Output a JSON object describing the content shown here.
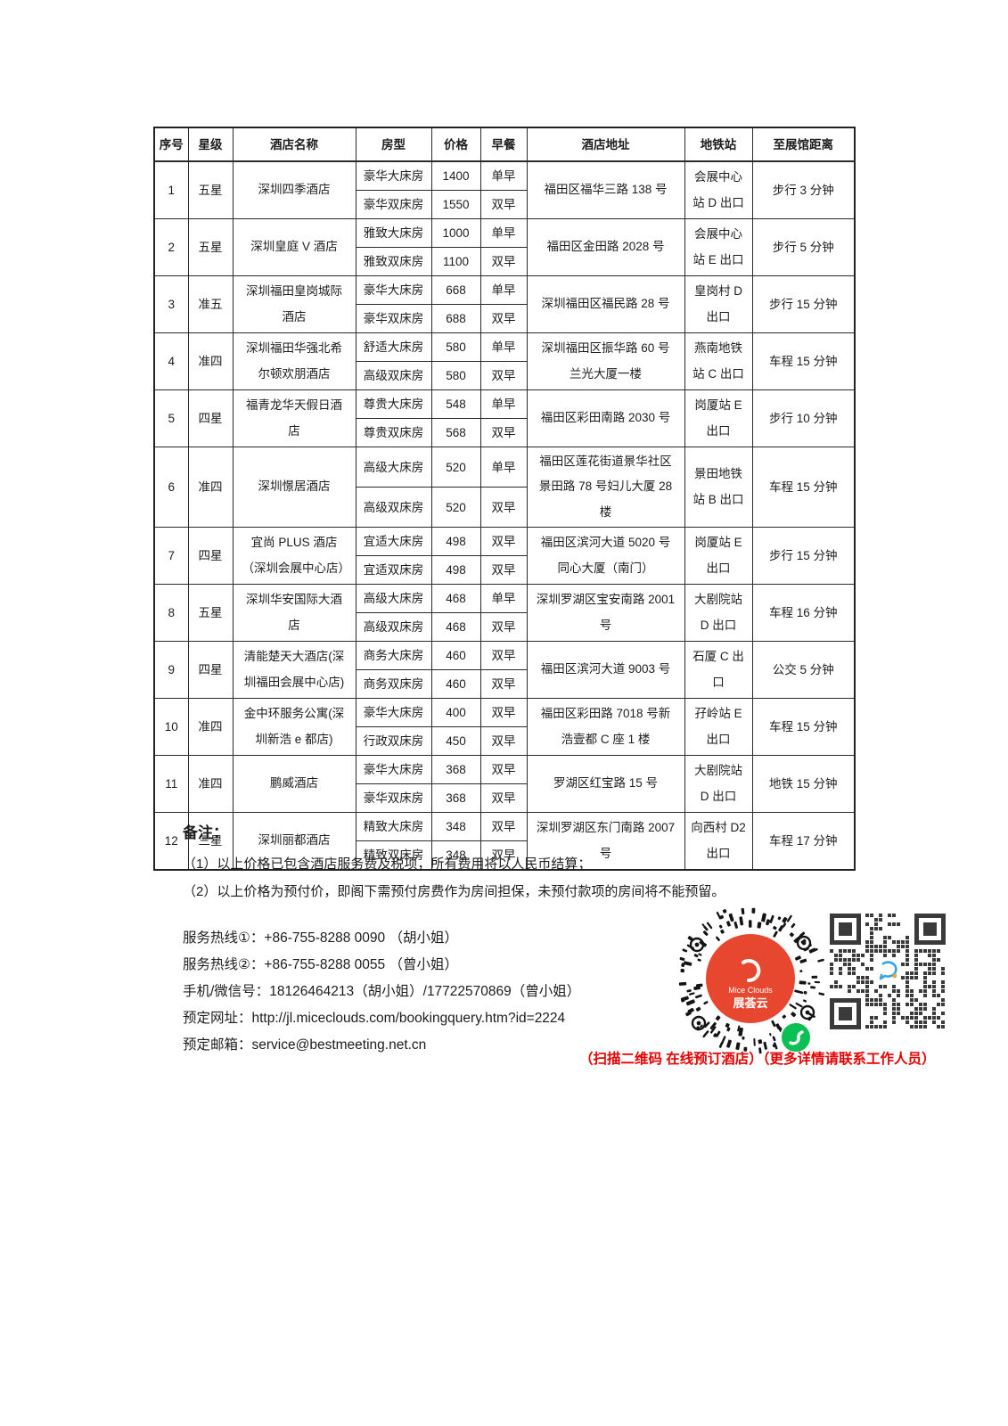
{
  "table": {
    "headers": [
      "序号",
      "星级",
      "酒店名称",
      "房型",
      "价格",
      "早餐",
      "酒店地址",
      "地铁站",
      "至展馆距离"
    ],
    "rows": [
      {
        "no": "1",
        "star": "五星",
        "hotel": "深圳四季酒店",
        "room1": "豪华大床房",
        "price1": "1400",
        "bf1": "单早",
        "room2": "豪华双床房",
        "price2": "1550",
        "bf2": "双早",
        "address": "福田区福华三路 138 号",
        "station": "会展中心站 D 出口",
        "distance": "步行 3 分钟"
      },
      {
        "no": "2",
        "star": "五星",
        "hotel": "深圳皇庭 V 酒店",
        "room1": "雅致大床房",
        "price1": "1000",
        "bf1": "单早",
        "room2": "雅致双床房",
        "price2": "1100",
        "bf2": "双早",
        "address": "福田区金田路 2028 号",
        "station": "会展中心站 E 出口",
        "distance": "步行 5 分钟"
      },
      {
        "no": "3",
        "star": "准五",
        "hotel": "深圳福田皇岗城际酒店",
        "room1": "豪华大床房",
        "price1": "668",
        "bf1": "单早",
        "room2": "豪华双床房",
        "price2": "688",
        "bf2": "双早",
        "address": "深圳福田区福民路 28 号",
        "station": "皇岗村 D 出口",
        "distance": "步行 15 分钟"
      },
      {
        "no": "4",
        "star": "准四",
        "hotel": "深圳福田华强北希尔顿欢朋酒店",
        "room1": "舒适大床房",
        "price1": "580",
        "bf1": "单早",
        "room2": "高级双床房",
        "price2": "580",
        "bf2": "双早",
        "address": "深圳福田区振华路 60 号兰光大厦一楼",
        "station": "燕南地铁站 C 出口",
        "distance": "车程 15 分钟"
      },
      {
        "no": "5",
        "star": "四星",
        "hotel": "福青龙华天假日酒店",
        "room1": "尊贵大床房",
        "price1": "548",
        "bf1": "单早",
        "room2": "尊贵双床房",
        "price2": "568",
        "bf2": "双早",
        "address": "福田区彩田南路 2030 号",
        "station": "岗厦站 E 出口",
        "distance": "步行 10 分钟"
      },
      {
        "no": "6",
        "star": "准四",
        "hotel": "深圳憬居酒店",
        "room1": "高级大床房",
        "price1": "520",
        "bf1": "单早",
        "room2": "高级双床房",
        "price2": "520",
        "bf2": "双早",
        "address": "福田区莲花街道景华社区景田路 78 号妇儿大厦 28 楼",
        "station": "景田地铁站 B 出口",
        "distance": "车程 15 分钟"
      },
      {
        "no": "7",
        "star": "四星",
        "hotel": "宜尚 PLUS 酒店（深圳会展中心店）",
        "room1": "宜适大床房",
        "price1": "498",
        "bf1": "双早",
        "room2": "宜适双床房",
        "price2": "498",
        "bf2": "双早",
        "address": "福田区滨河大道 5020 号同心大厦（南门）",
        "station": "岗厦站 E 出口",
        "distance": "步行 15 分钟"
      },
      {
        "no": "8",
        "star": "五星",
        "hotel": "深圳华安国际大酒店",
        "room1": "高级大床房",
        "price1": "468",
        "bf1": "单早",
        "room2": "高级双床房",
        "price2": "468",
        "bf2": "双早",
        "address": "深圳罗湖区宝安南路 2001 号",
        "station": "大剧院站 D 出口",
        "distance": "车程 16 分钟"
      },
      {
        "no": "9",
        "star": "四星",
        "hotel": "清能楚天大酒店(深圳福田会展中心店)",
        "room1": "商务大床房",
        "price1": "460",
        "bf1": "双早",
        "room2": "商务双床房",
        "price2": "460",
        "bf2": "双早",
        "address": "福田区滨河大道 9003 号",
        "station": "石厦 C 出口",
        "distance": "公交 5 分钟"
      },
      {
        "no": "10",
        "star": "准四",
        "hotel": "金中环服务公寓(深圳新浩 e 都店)",
        "room1": "豪华大床房",
        "price1": "400",
        "bf1": "双早",
        "room2": "行政双床房",
        "price2": "450",
        "bf2": "双早",
        "address": "福田区彩田路 7018 号新浩壹都 C 座 1 楼",
        "station": "孖岭站 E 出口",
        "distance": "车程 15 分钟"
      },
      {
        "no": "11",
        "star": "准四",
        "hotel": "鹏威酒店",
        "room1": "豪华大床房",
        "price1": "368",
        "bf1": "双早",
        "room2": "豪华双床房",
        "price2": "368",
        "bf2": "双早",
        "address": "罗湖区红宝路 15 号",
        "station": "大剧院站 D 出口",
        "distance": "地铁 15 分钟"
      },
      {
        "no": "12",
        "star": "三星",
        "hotel": "深圳丽都酒店",
        "room1": "精致大床房",
        "price1": "348",
        "bf1": "双早",
        "room2": "精致双床房",
        "price2": "348",
        "bf2": "双早",
        "address": "深圳罗湖区东门南路 2007 号",
        "station": "向西村 D2 出口",
        "distance": "车程 17 分钟"
      }
    ]
  },
  "notes": {
    "title": "备注：",
    "items": [
      "（1）以上价格已包含酒店服务费及税项，所有费用将以人民币结算；",
      "（2）以上价格为预付价，即阁下需预付房费作为房间担保，未预付款项的房间将不能预留。"
    ]
  },
  "contact": {
    "lines": [
      "服务热线①：+86-755-8288 0090 （胡小姐）",
      "服务热线②：+86-755-8288 0055 （曾小姐）",
      "手机/微信号：18126464213（胡小姐）/17722570869（曾小姐）",
      "预定网址：http://jl.miceclouds.com/bookingquery.htm?id=2224",
      "预定邮箱：service@bestmeeting.net.cn"
    ]
  },
  "qr": {
    "brand_en": "Mice Clouds",
    "brand_cn": "展荟云",
    "brand_red": "#e8472f",
    "wechat_green": "#0abf53",
    "chat_blue": "#35a6e0"
  },
  "footer": {
    "scan_note": "（扫描二维码 在线预订酒店）（更多详情请联系工作人员）",
    "note_color": "#e60000"
  }
}
